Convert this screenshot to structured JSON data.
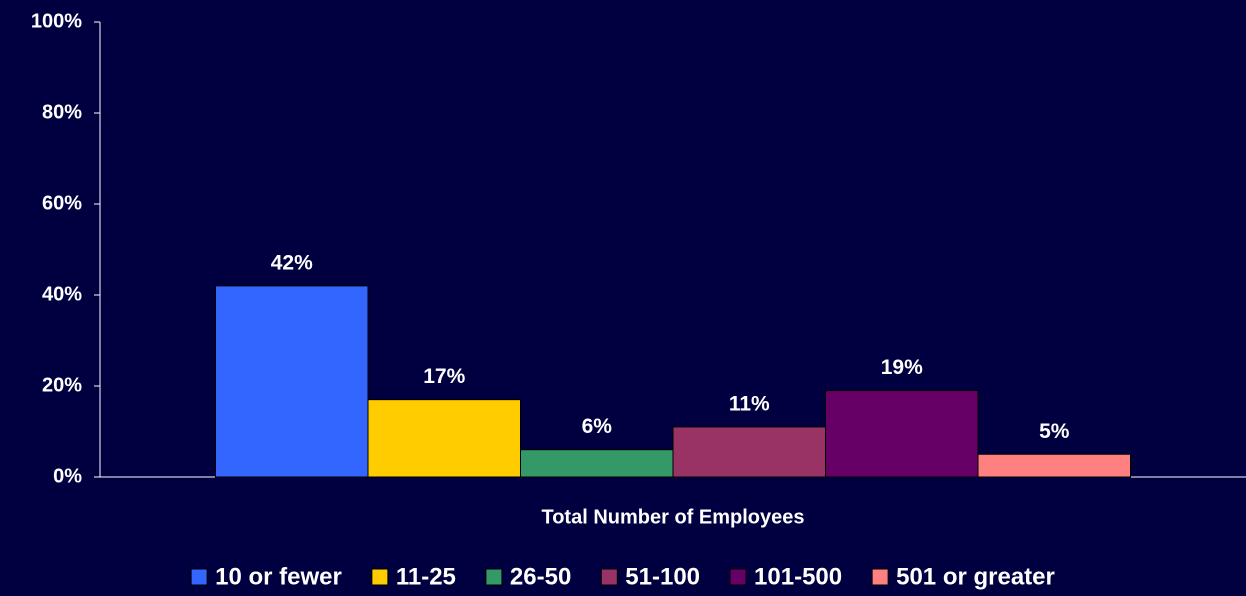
{
  "chart_data": {
    "type": "bar",
    "x_label": "Total Number of Employees",
    "series": [
      {
        "name": "10 or fewer",
        "color": "#3366ff",
        "values": [
          42
        ],
        "value_labels": [
          "42%"
        ]
      },
      {
        "name": "11-25",
        "color": "#ffcc00",
        "values": [
          17
        ],
        "value_labels": [
          "17%"
        ]
      },
      {
        "name": "26-50",
        "color": "#339966",
        "values": [
          6
        ],
        "value_labels": [
          "6%"
        ]
      },
      {
        "name": "51-100",
        "color": "#993366",
        "values": [
          11
        ],
        "value_labels": [
          "11%"
        ]
      },
      {
        "name": "101-500",
        "color": "#660066",
        "values": [
          19
        ],
        "value_labels": [
          "19%"
        ]
      },
      {
        "name": "501 or greater",
        "color": "#ff8080",
        "values": [
          5
        ],
        "value_labels": [
          "5%"
        ]
      }
    ],
    "ylim": [
      0,
      100
    ],
    "yticks": [
      {
        "value": 0,
        "label": "0%"
      },
      {
        "value": 20,
        "label": "20%"
      },
      {
        "value": 40,
        "label": "40%"
      },
      {
        "value": 60,
        "label": "60%"
      },
      {
        "value": 80,
        "label": "80%"
      },
      {
        "value": 100,
        "label": "100%"
      }
    ],
    "legend": "bottom"
  }
}
